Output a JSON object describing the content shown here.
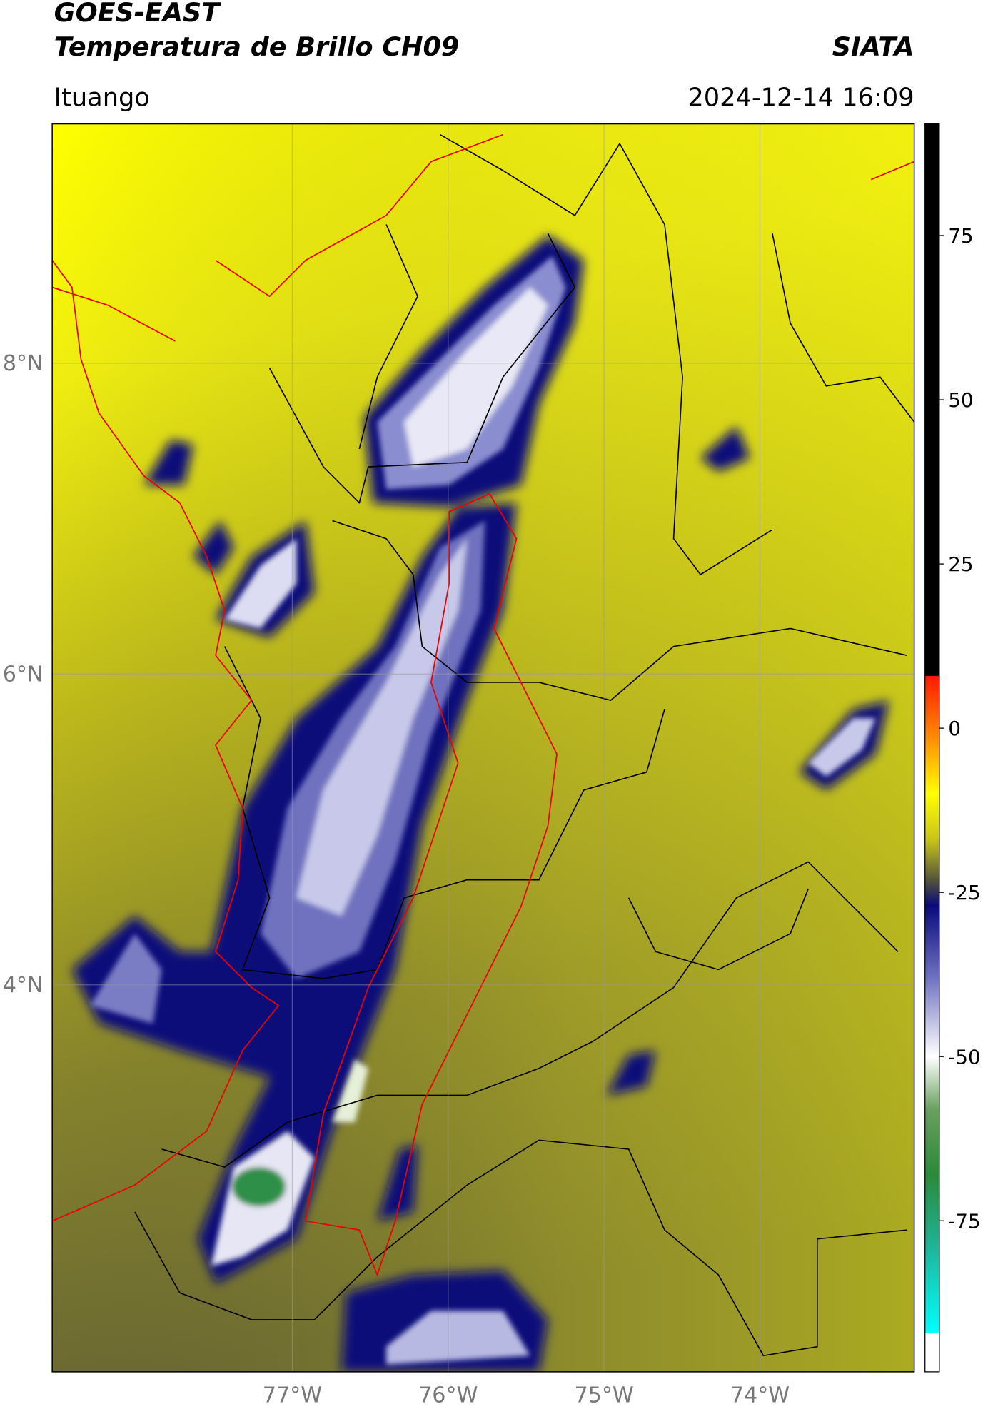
{
  "map": {
    "title": "GOES-EAST",
    "subtitle": "Temperatura de Brillo CH09",
    "source": "SIATA",
    "location": "Ituango",
    "datetime": "2024-12-14 16:09",
    "xlim": [
      -78.54,
      -73.01
    ],
    "ylim": [
      1.51,
      9.54
    ],
    "xticks": [
      {
        "value": -77,
        "label": "77°W"
      },
      {
        "value": -76,
        "label": "76°W"
      },
      {
        "value": -75,
        "label": "75°W"
      },
      {
        "value": -74,
        "label": "74°W"
      }
    ],
    "yticks": [
      {
        "value": 4,
        "label": "4°N"
      },
      {
        "value": 6,
        "label": "6°N"
      },
      {
        "value": 8,
        "label": "8°N"
      }
    ],
    "grid": true,
    "colorbar": {
      "lim": [
        -98,
        92
      ],
      "ticks": [
        -75,
        -50,
        -25,
        0,
        25,
        50,
        75
      ],
      "colors": [
        {
          "value": 92,
          "color": "#000000"
        },
        {
          "value": 8,
          "color": "#000000"
        },
        {
          "value": 7.9,
          "color": "#ff1a00"
        },
        {
          "value": 0,
          "color": "#ff7a00"
        },
        {
          "value": -10,
          "color": "#ffff00"
        },
        {
          "value": -17,
          "color": "#c8c41a"
        },
        {
          "value": -23,
          "color": "#55553a"
        },
        {
          "value": -27,
          "color": "#0a0a7a"
        },
        {
          "value": -38,
          "color": "#6f72c0"
        },
        {
          "value": -50,
          "color": "#ffffff"
        },
        {
          "value": -58,
          "color": "#6aa060"
        },
        {
          "value": -68,
          "color": "#2a8a3a"
        },
        {
          "value": -78,
          "color": "#20b090"
        },
        {
          "value": -92,
          "color": "#00ffff"
        },
        {
          "value": -92.1,
          "color": "#ffffff"
        },
        {
          "value": -98,
          "color": "#ffffff"
        }
      ]
    }
  }
}
